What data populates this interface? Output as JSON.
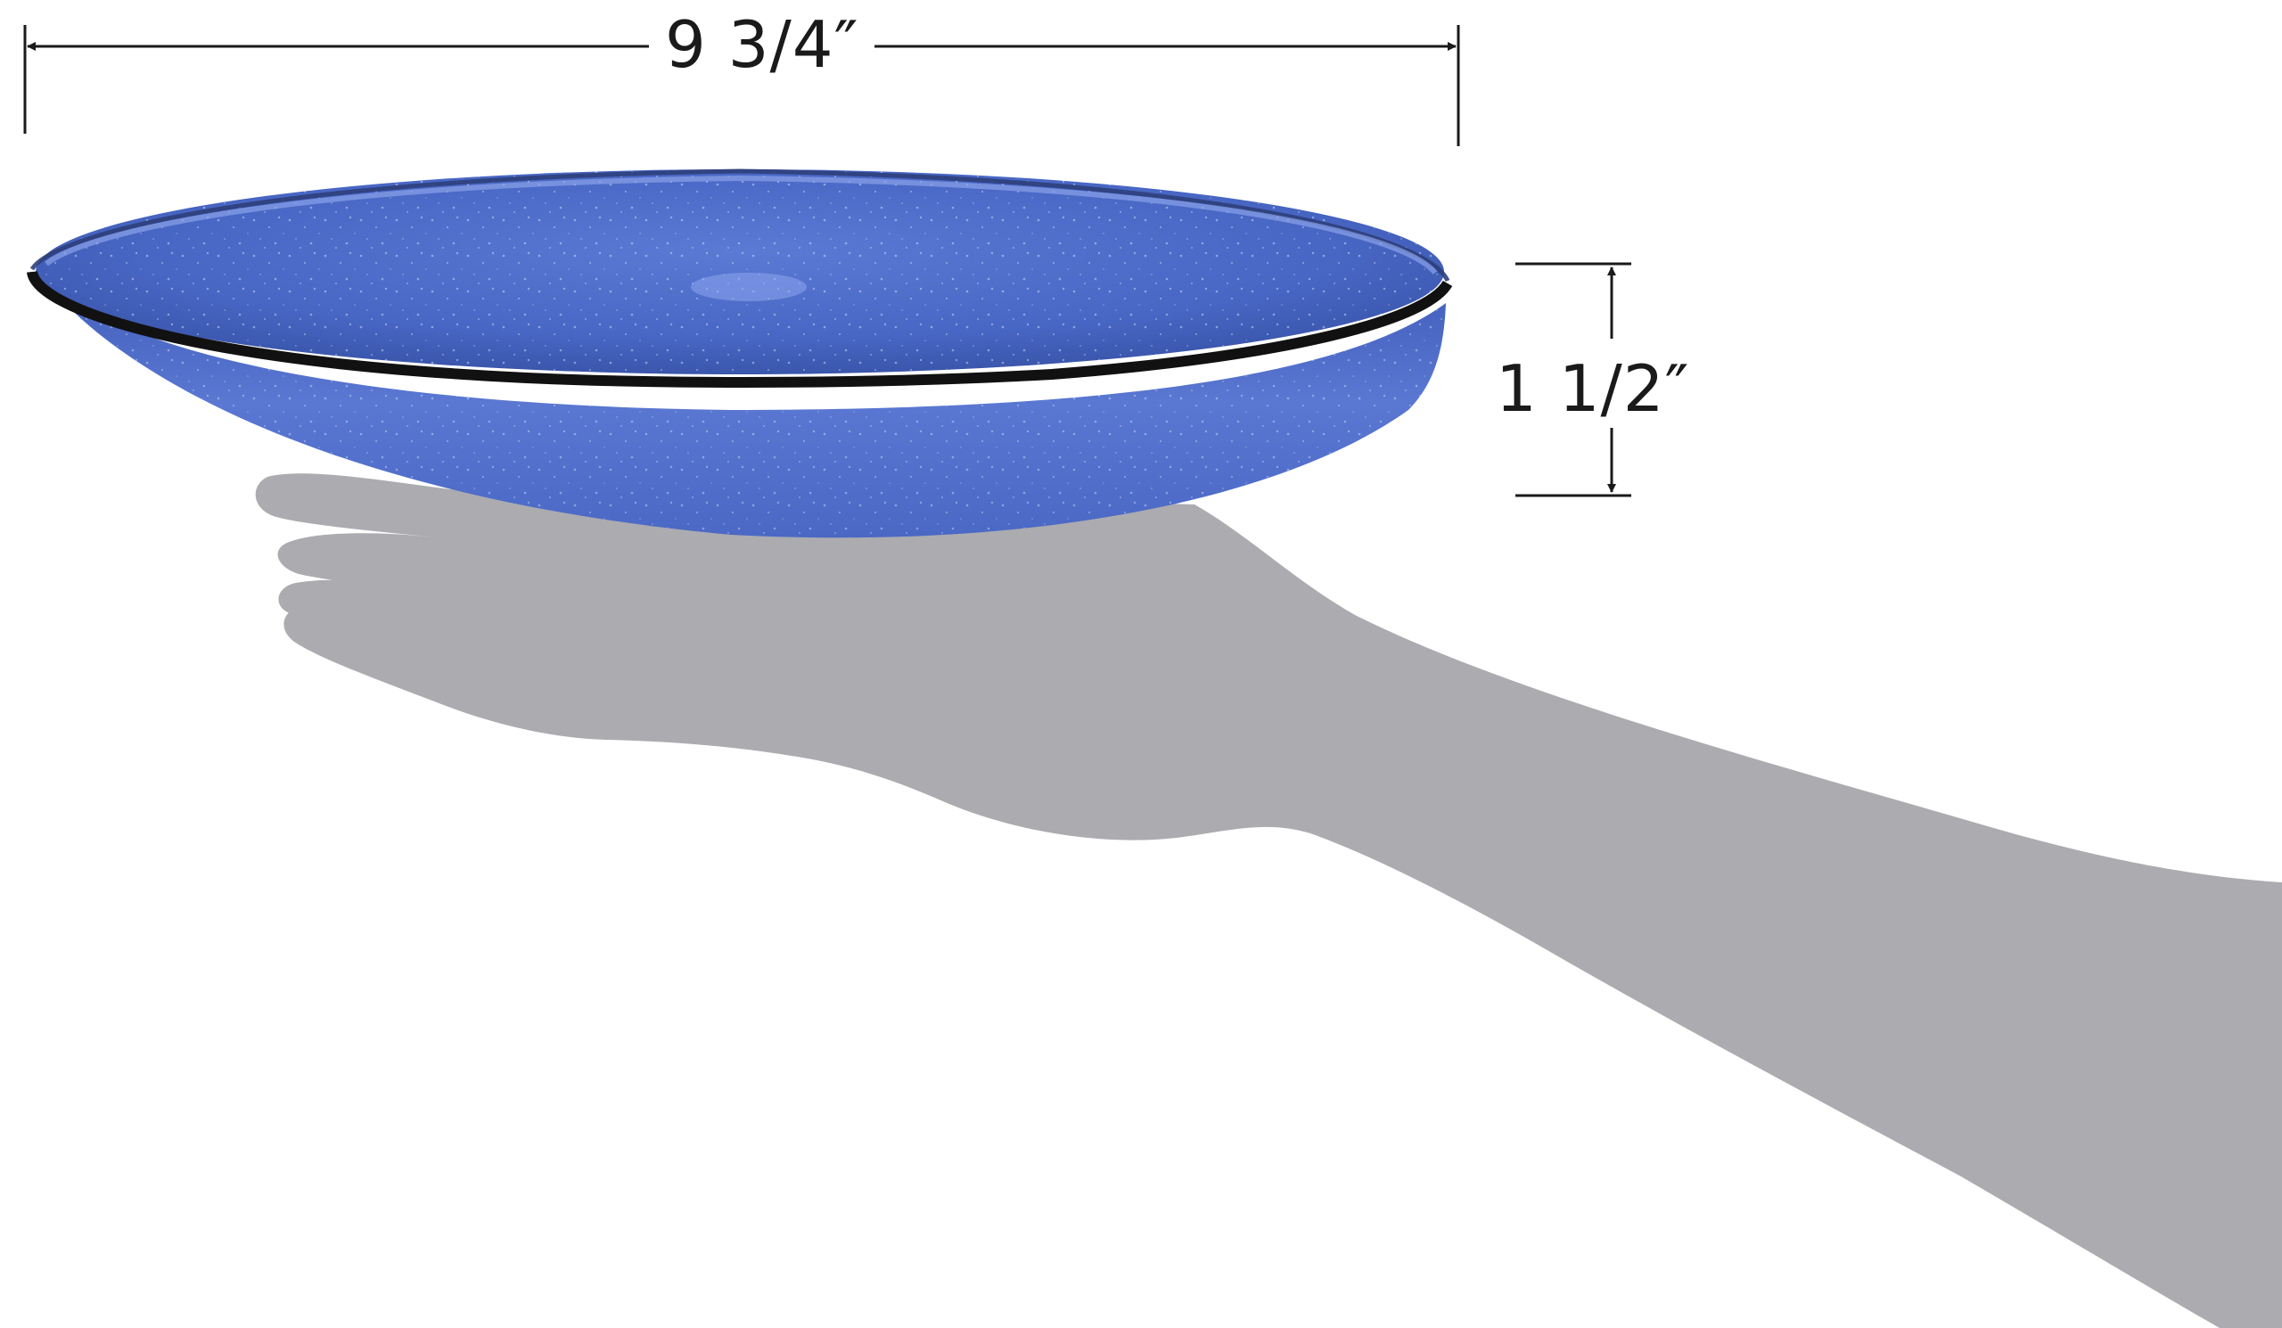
{
  "dimensions": {
    "width_label": "9 3/4″",
    "height_label": "1 1/2″"
  },
  "colors": {
    "background": "#ffffff",
    "plate_blue": "#4a6cc8",
    "plate_blue_dark": "#2f4f9e",
    "rim": "#111111",
    "shadow": "#ababb0",
    "dimension_lines": "#1a1a1a"
  },
  "icons": [
    "width-dimension-arrow",
    "height-dimension-arrow"
  ]
}
